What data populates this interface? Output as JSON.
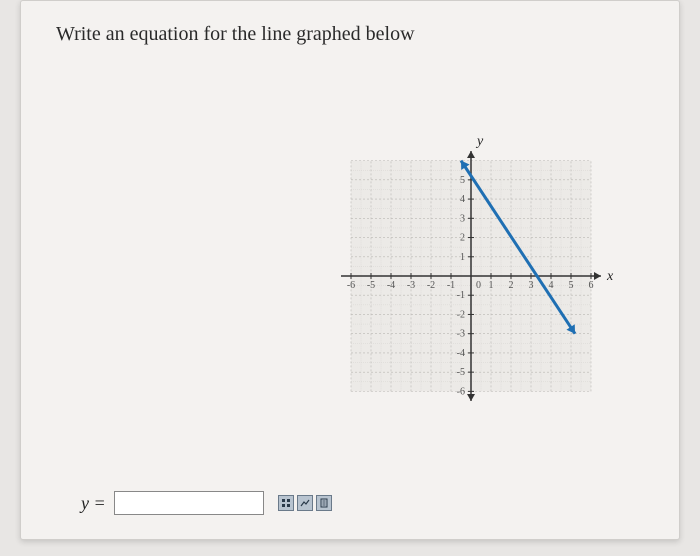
{
  "prompt": "Write an equation for the line graphed below",
  "answer": {
    "label_lhs": "y =",
    "value": ""
  },
  "graph": {
    "type": "line",
    "background_color": "#f4f2f0",
    "plot_region_color": "#eceae7",
    "grid_color": "#b8b6b2",
    "subgrid_color": "#d6d4d0",
    "axis_color": "#333333",
    "tick_label_color": "#555555",
    "tick_fontsize": 10,
    "axis_label_fontsize": 14,
    "xlim": [
      -6.5,
      6.5
    ],
    "ylim": [
      -6.5,
      6.5
    ],
    "xticks": [
      -6,
      -5,
      -4,
      -3,
      -2,
      -1,
      0,
      1,
      2,
      3,
      4,
      5,
      6
    ],
    "yticks": [
      -6,
      -5,
      -4,
      -3,
      -2,
      -1,
      1,
      2,
      3,
      4,
      5
    ],
    "x_axis_label": "x",
    "y_axis_label": "y",
    "line": {
      "points": [
        [
          -0.5,
          6
        ],
        [
          5.2,
          -3
        ]
      ],
      "color": "#1f6fb3",
      "width": 3,
      "end_arrows": true
    }
  },
  "tool_icons": [
    "keypad-icon",
    "graph-icon",
    "help-icon"
  ]
}
